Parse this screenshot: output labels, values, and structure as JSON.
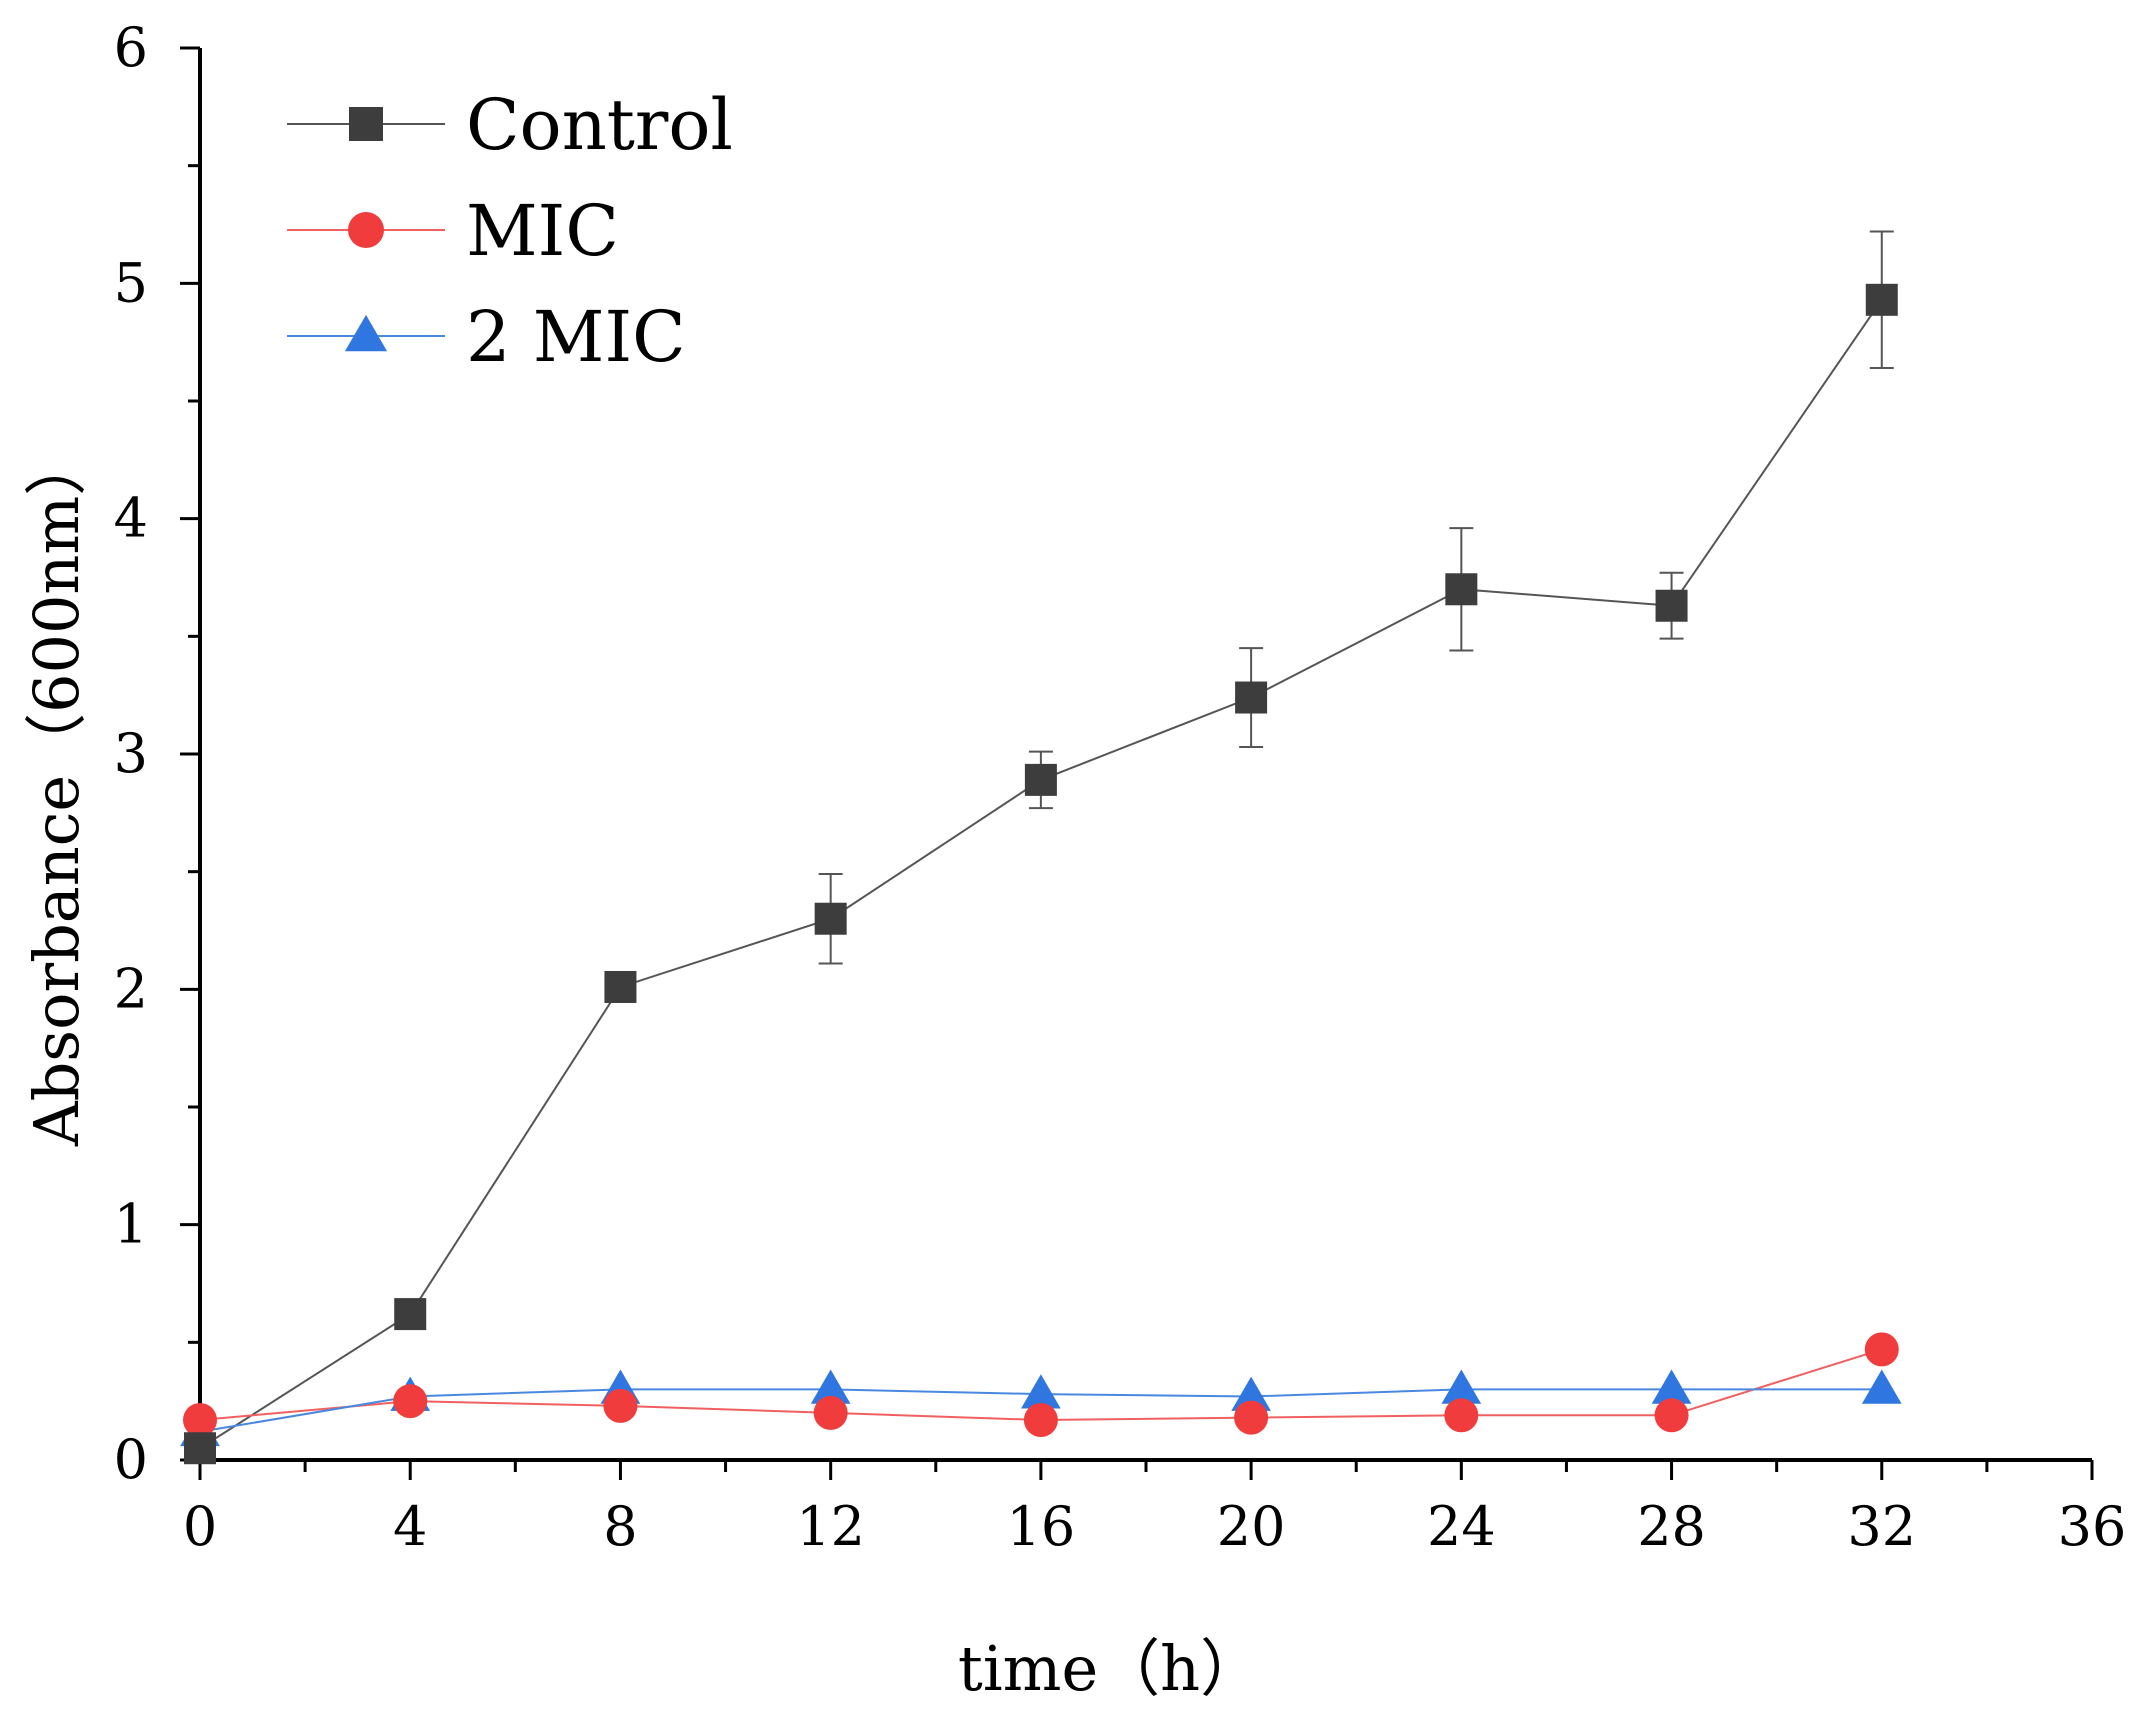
{
  "chart_data": {
    "type": "line",
    "title": "",
    "xlabel": "time（h）",
    "ylabel": "Absorbance（600nm）",
    "xlim": [
      0,
      36
    ],
    "ylim": [
      0,
      6
    ],
    "xticks": [
      0,
      4,
      8,
      12,
      16,
      20,
      24,
      28,
      32,
      36
    ],
    "yticks": [
      0,
      1,
      2,
      3,
      4,
      5,
      6
    ],
    "legend_position": "top-left",
    "grid": false,
    "x": [
      0,
      4,
      8,
      12,
      16,
      20,
      24,
      28,
      32
    ],
    "series": [
      {
        "name": "Control",
        "marker": "square",
        "color": "#3d3d3d",
        "line_color": "#555555",
        "values": [
          0.05,
          0.62,
          2.01,
          2.3,
          2.89,
          3.24,
          3.7,
          3.63,
          4.93
        ],
        "errors": [
          0.0,
          0.0,
          0.0,
          0.19,
          0.12,
          0.21,
          0.26,
          0.14,
          0.29
        ]
      },
      {
        "name": "MIC",
        "marker": "circle",
        "color": "#f03c3c",
        "line_color": "#f06060",
        "values": [
          0.17,
          0.25,
          0.23,
          0.2,
          0.17,
          0.18,
          0.19,
          0.19,
          0.47
        ],
        "errors": [
          0,
          0,
          0,
          0,
          0,
          0,
          0,
          0,
          0
        ]
      },
      {
        "name": "2 MIC",
        "marker": "triangle",
        "color": "#2f76e0",
        "line_color": "#4a88e0",
        "values": [
          0.12,
          0.27,
          0.3,
          0.3,
          0.28,
          0.27,
          0.3,
          0.3,
          0.3
        ],
        "errors": [
          0,
          0,
          0,
          0,
          0,
          0,
          0,
          0,
          0
        ]
      }
    ]
  }
}
